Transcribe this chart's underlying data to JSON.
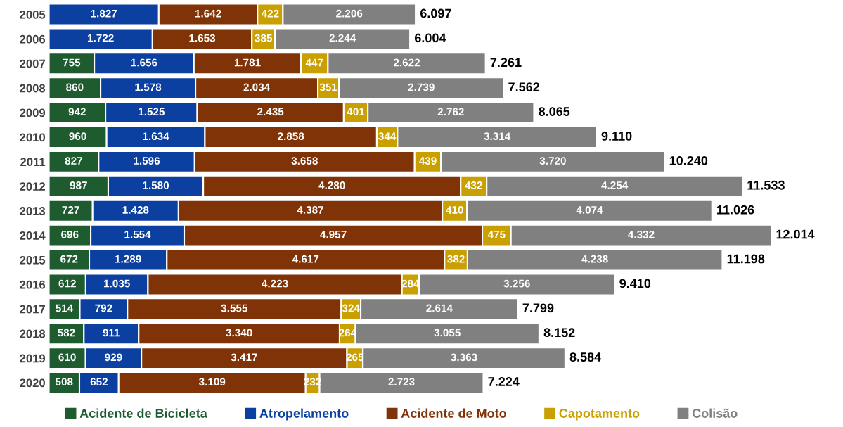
{
  "chart_data": {
    "type": "bar",
    "orientation": "horizontal",
    "stacked": true,
    "categories": [
      "2005",
      "2006",
      "2007",
      "2008",
      "2009",
      "2010",
      "2011",
      "2012",
      "2013",
      "2014",
      "2015",
      "2016",
      "2017",
      "2018",
      "2019",
      "2020"
    ],
    "series": [
      {
        "name": "Acidente de Bicicleta",
        "color": "#1e5c30",
        "values": [
          null,
          null,
          755,
          860,
          942,
          960,
          827,
          987,
          727,
          696,
          672,
          612,
          514,
          582,
          610,
          508
        ],
        "value_labels": [
          null,
          null,
          "755",
          "860",
          "942",
          "960",
          "827",
          "987",
          "727",
          "696",
          "672",
          "612",
          "514",
          "582",
          "610",
          "508"
        ]
      },
      {
        "name": "Atropelamento",
        "color": "#0b3fa0",
        "values": [
          1827,
          1722,
          1656,
          1578,
          1525,
          1634,
          1596,
          1580,
          1428,
          1554,
          1289,
          1035,
          792,
          911,
          929,
          652
        ],
        "value_labels": [
          "1.827",
          "1.722",
          "1.656",
          "1.578",
          "1.525",
          "1.634",
          "1.596",
          "1.580",
          "1.428",
          "1.554",
          "1.289",
          "1.035",
          "792",
          "911",
          "929",
          "652"
        ]
      },
      {
        "name": "Acidente de Moto",
        "color": "#7f3306",
        "values": [
          1642,
          1653,
          1781,
          2034,
          2435,
          2858,
          3658,
          4280,
          4387,
          4957,
          4617,
          4223,
          3555,
          3340,
          3417,
          3109
        ],
        "value_labels": [
          "1.642",
          "1.653",
          "1.781",
          "2.034",
          "2.435",
          "2.858",
          "3.658",
          "4.280",
          "4.387",
          "4.957",
          "4.617",
          "4.223",
          "3.555",
          "3.340",
          "3.417",
          "3.109"
        ]
      },
      {
        "name": "Capotamento",
        "color": "#c9a000",
        "values": [
          422,
          385,
          447,
          351,
          401,
          344,
          439,
          432,
          410,
          475,
          382,
          284,
          324,
          264,
          265,
          232
        ],
        "value_labels": [
          "422",
          "385",
          "447",
          "351",
          "401",
          "344",
          "439",
          "432",
          "410",
          "475",
          "382",
          "284",
          "324",
          "264",
          "265",
          "232"
        ]
      },
      {
        "name": "Colisão",
        "color": "#808080",
        "values": [
          2206,
          2244,
          2622,
          2739,
          2762,
          3314,
          3720,
          4254,
          4074,
          4332,
          4238,
          3256,
          2614,
          3055,
          3363,
          2723
        ],
        "value_labels": [
          "2.206",
          "2.244",
          "2.622",
          "2.739",
          "2.762",
          "3.314",
          "3.720",
          "4.254",
          "4.074",
          "4.332",
          "4.238",
          "3.256",
          "2.614",
          "3.055",
          "3.363",
          "2.723"
        ]
      }
    ],
    "totals": [
      "6.097",
      "6.004",
      "7.261",
      "7.562",
      "8.065",
      "9.110",
      "10.240",
      "11.533",
      "11.026",
      "12.014",
      "11.198",
      "9.410",
      "7.799",
      "8.152",
      "8.584",
      "7.224"
    ],
    "legend": "bottom",
    "grid": false
  }
}
